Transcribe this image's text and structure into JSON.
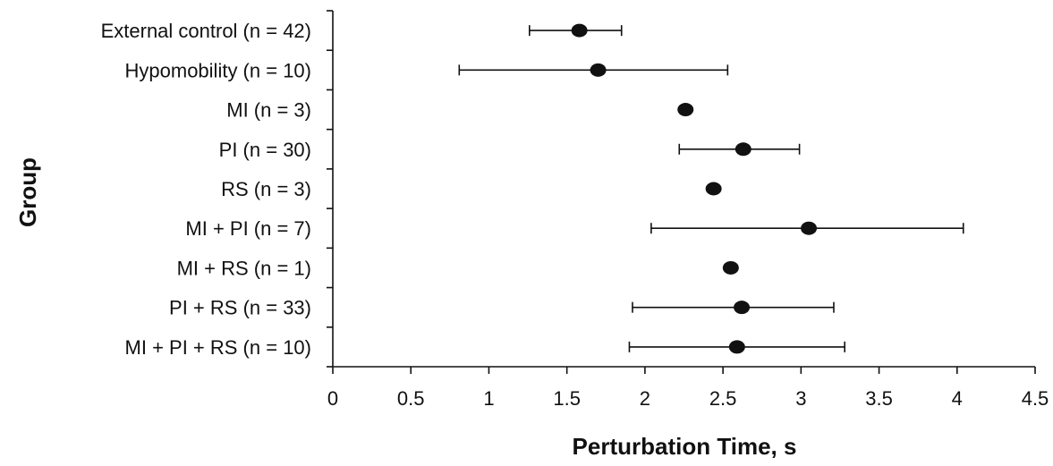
{
  "chart_data": {
    "type": "scatter",
    "title": "",
    "xlabel": "Perturbation Time, s",
    "ylabel": "Group",
    "xlim": [
      0,
      4.5
    ],
    "xticks": [
      "0",
      "0.5",
      "1",
      "1.5",
      "2",
      "2.5",
      "3",
      "3.5",
      "4",
      "4.5"
    ],
    "grid": false,
    "legend": "none",
    "categories": [
      "External control (n = 42)",
      "Hypomobility (n = 10)",
      "MI (n = 3)",
      "PI (n = 30)",
      "RS (n = 3)",
      "MI + PI (n = 7)",
      "MI + RS (n = 1)",
      "PI + RS (n = 33)",
      "MI + PI + RS (n = 10)"
    ],
    "series": [
      {
        "values": [
          1.58,
          1.7,
          2.26,
          2.63,
          2.44,
          3.05,
          2.55,
          2.62,
          2.59
        ],
        "error_low": [
          1.26,
          0.81,
          null,
          2.22,
          null,
          2.04,
          null,
          1.92,
          1.9
        ],
        "error_high": [
          1.85,
          2.53,
          null,
          2.99,
          null,
          4.04,
          null,
          3.21,
          3.28
        ]
      }
    ]
  }
}
